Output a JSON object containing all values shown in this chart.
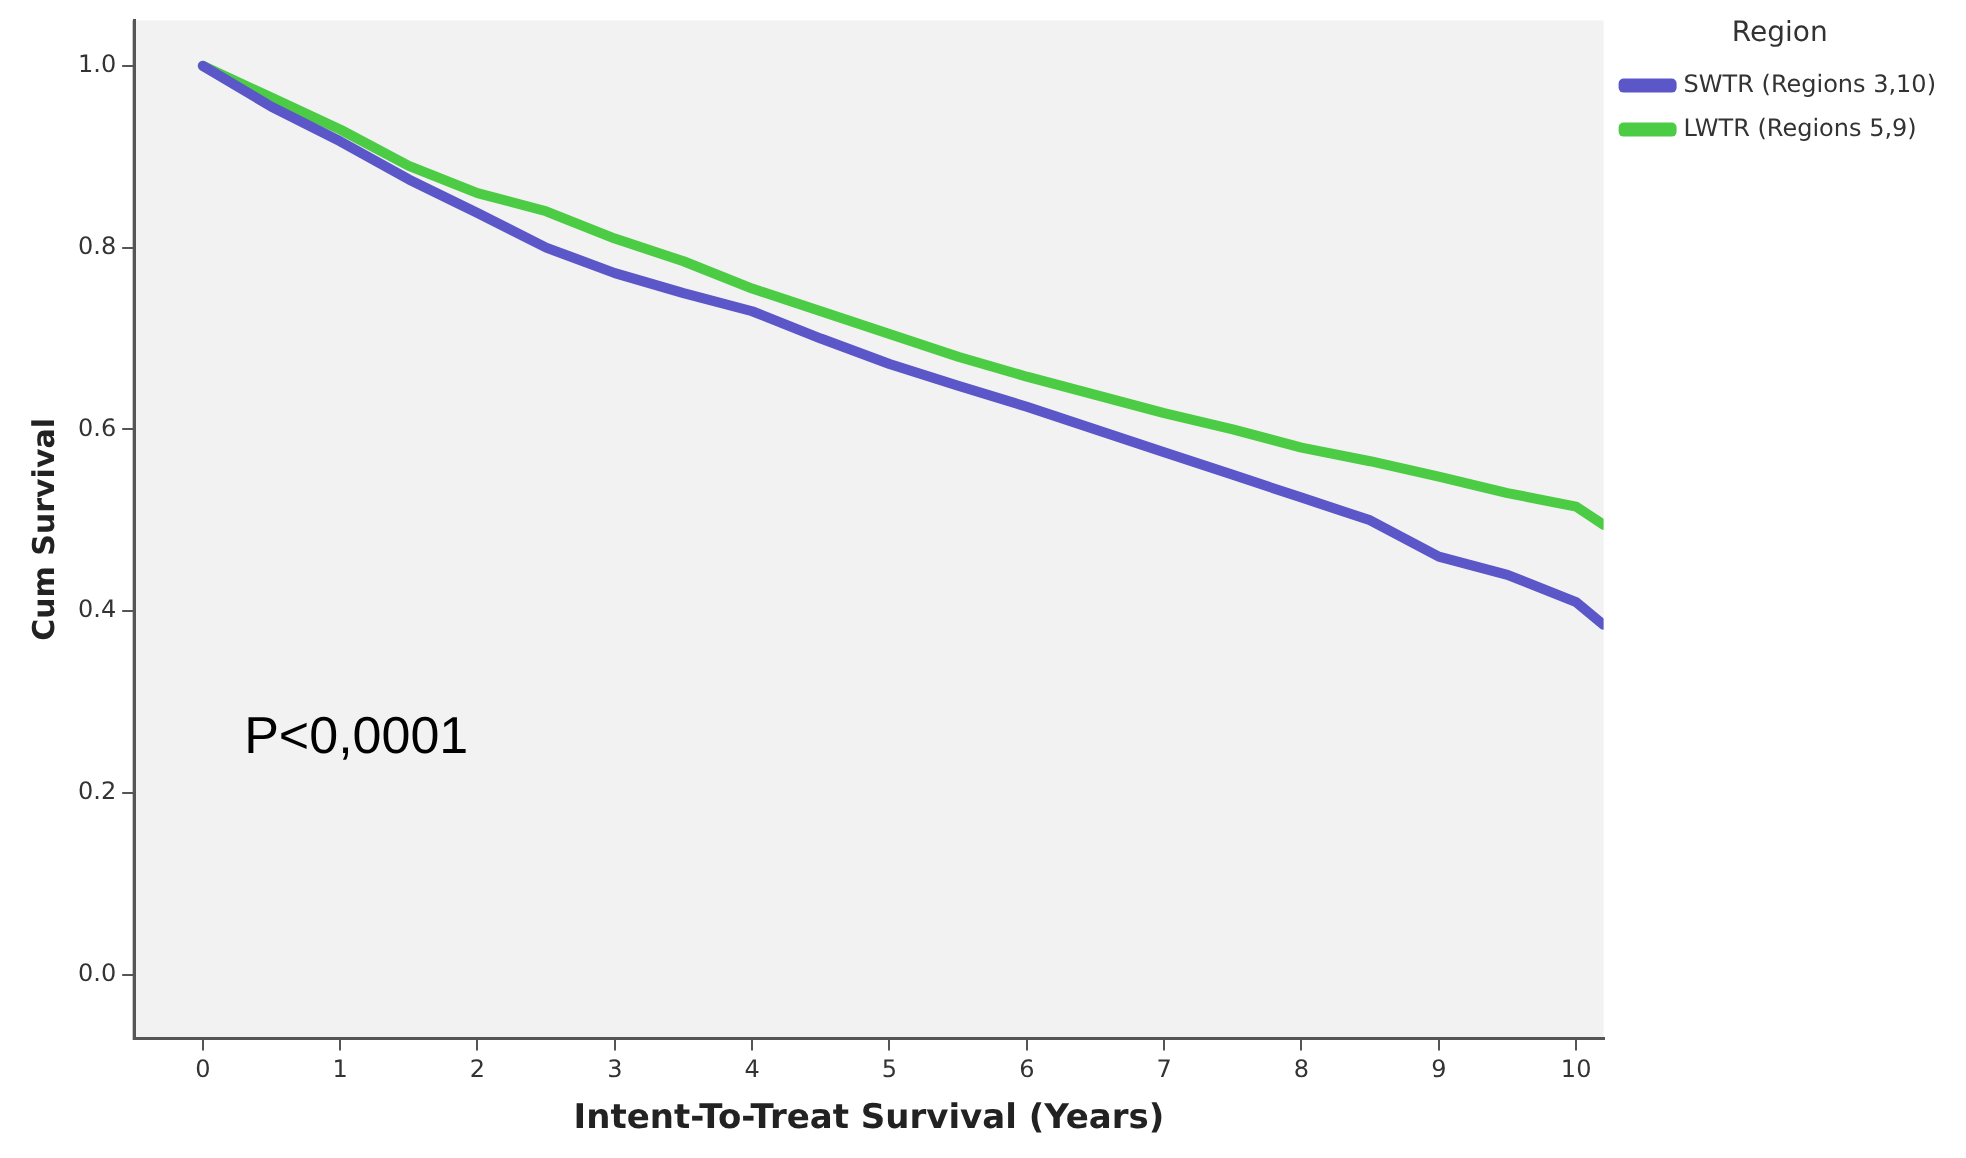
{
  "chart_data": {
    "type": "line",
    "xlabel": "Intent-To-Treat Survival (Years)",
    "ylabel": "Cum Survival",
    "legend_title": "Region",
    "legend": "top right",
    "marker": "none",
    "grid": false,
    "annotations": [
      "P<0,0001"
    ],
    "x": [
      0,
      0.5,
      1,
      1.5,
      2,
      2.5,
      3,
      3.5,
      4,
      4.5,
      5,
      5.5,
      6,
      6.5,
      7,
      7.5,
      8,
      8.5,
      9,
      9.5,
      10,
      10.2
    ],
    "xlim": [
      -0.5,
      10.2
    ],
    "xticks": [
      0,
      1,
      2,
      3,
      4,
      5,
      6,
      7,
      8,
      9,
      10
    ],
    "ylim": [
      -0.07,
      1.05
    ],
    "yticks": [
      {
        "value": 0,
        "label": "0.0"
      },
      {
        "value": 0.2,
        "label": "0.2"
      },
      {
        "value": 0.4,
        "label": "0.4"
      },
      {
        "value": 0.6,
        "label": "0.6"
      },
      {
        "value": 0.8,
        "label": "0.8"
      },
      {
        "value": 1,
        "label": "1.0"
      }
    ],
    "series": [
      {
        "name": "SWTR (Regions 3,10)",
        "color": "#5b57c9",
        "values": [
          1.0,
          0.955,
          0.917,
          0.875,
          0.838,
          0.8,
          0.772,
          0.75,
          0.73,
          0.7,
          0.672,
          0.648,
          0.625,
          0.6,
          0.575,
          0.55,
          0.525,
          0.5,
          0.46,
          0.44,
          0.41,
          0.385
        ]
      },
      {
        "name": "LWTR (Regions 5,9)",
        "color": "#4ccc44",
        "values": [
          1.0,
          0.965,
          0.93,
          0.89,
          0.86,
          0.84,
          0.81,
          0.785,
          0.755,
          0.73,
          0.705,
          0.68,
          0.658,
          0.638,
          0.618,
          0.6,
          0.58,
          0.565,
          0.548,
          0.53,
          0.515,
          0.495
        ]
      }
    ]
  }
}
